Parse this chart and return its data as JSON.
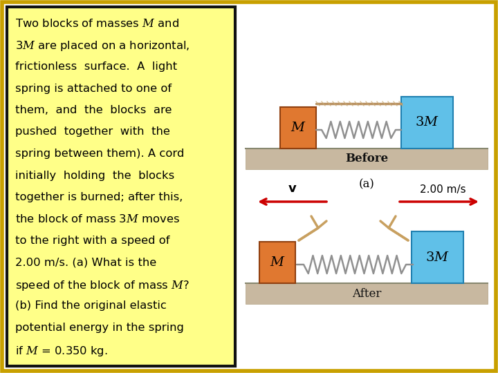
{
  "bg_color": "#ffffff",
  "outer_border_color": "#c8a000",
  "text_box_bg": "#ffff88",
  "text_box_border": "#111111",
  "block_M_color": "#e07830",
  "block_M_edge": "#904010",
  "block_3M_color": "#60c0e8",
  "block_3M_edge": "#2080b0",
  "surface_top_color": "#c8b898",
  "surface_bot_color": "#d8c8a8",
  "spring_color": "#909090",
  "cord_color": "#c8a870",
  "arrow_color": "#cc0000",
  "text_color": "#000000",
  "before_label": "Before",
  "after_label": "After",
  "a_label": "(a)",
  "v_label": "v",
  "speed_label": "2.00 m/s",
  "M_label": "M",
  "3M_label": "3M"
}
